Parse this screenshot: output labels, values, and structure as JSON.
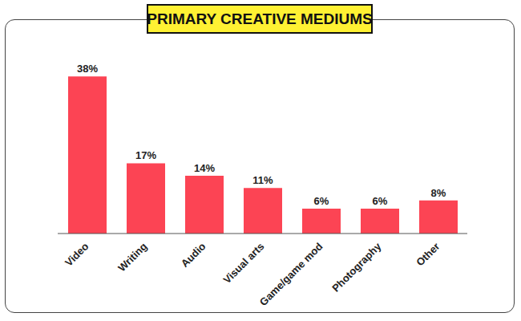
{
  "chart_data": {
    "type": "bar",
    "title": "PRIMARY CREATIVE MEDIUMS",
    "categories": [
      "Video",
      "Writing",
      "Audio",
      "Visual arts",
      "Game/game mod",
      "Photography",
      "Other"
    ],
    "values": [
      38,
      17,
      14,
      11,
      6,
      6,
      8
    ],
    "value_labels": [
      "38%",
      "17%",
      "14%",
      "11%",
      "6%",
      "6%",
      "8%"
    ],
    "color": "#fc4454",
    "ylim": [
      0,
      40
    ],
    "grid": false,
    "data_labels": true,
    "tick_labels": "x"
  }
}
